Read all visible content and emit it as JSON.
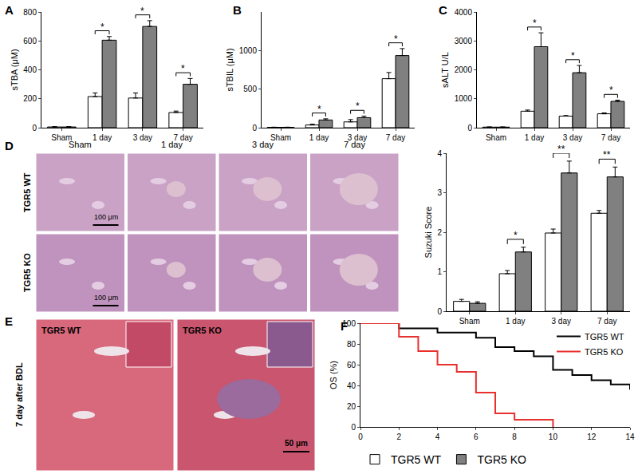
{
  "chart_data": [
    {
      "panel": "A",
      "type": "bar",
      "y_label": "sTBA (μM)",
      "categories": [
        "Sham",
        "1 day",
        "3 day",
        "7 day"
      ],
      "series": [
        {
          "name": "TGR5 WT",
          "color": "#ffffff",
          "values": [
            5,
            215,
            205,
            105
          ],
          "errors": [
            2,
            25,
            35,
            10
          ]
        },
        {
          "name": "TGR5 KO",
          "color": "#808080",
          "values": [
            5,
            605,
            700,
            300
          ],
          "errors": [
            2,
            25,
            40,
            40
          ]
        }
      ],
      "ylim": [
        0,
        800
      ],
      "yticks": [
        0,
        200,
        400,
        600,
        800
      ],
      "significance": [
        null,
        "*",
        "*",
        "*"
      ]
    },
    {
      "panel": "B",
      "type": "bar",
      "y_label": "sTBIL (μM)",
      "categories": [
        "Sham",
        "1 day",
        "3 day",
        "7 day"
      ],
      "series": [
        {
          "name": "TGR5 WT",
          "color": "#ffffff",
          "values": [
            5,
            35,
            75,
            635
          ],
          "errors": [
            2,
            10,
            30,
            80
          ]
        },
        {
          "name": "TGR5 KO",
          "color": "#808080",
          "values": [
            5,
            100,
            130,
            935
          ],
          "errors": [
            2,
            15,
            20,
            90
          ]
        }
      ],
      "ylim": [
        0,
        1500
      ],
      "yticks": [
        0,
        500,
        1000
      ],
      "significance": [
        null,
        "*",
        "*",
        "*"
      ]
    },
    {
      "panel": "C",
      "type": "bar",
      "y_label": "sALT U/L",
      "categories": [
        "Sham",
        "1 day",
        "3 day",
        "7 day"
      ],
      "series": [
        {
          "name": "TGR5 WT",
          "color": "#ffffff",
          "values": [
            20,
            570,
            400,
            480
          ],
          "errors": [
            5,
            40,
            20,
            30
          ]
        },
        {
          "name": "TGR5 KO",
          "color": "#808080",
          "values": [
            20,
            2800,
            1900,
            910
          ],
          "errors": [
            5,
            480,
            250,
            40
          ]
        }
      ],
      "ylim": [
        0,
        4000
      ],
      "yticks": [
        0,
        1000,
        2000,
        3000,
        4000
      ],
      "significance": [
        null,
        "*",
        "*",
        "*"
      ]
    },
    {
      "type": "bar",
      "y_label": "Suzuki Score",
      "categories": [
        "Sham",
        "1 day",
        "3 day",
        "7 day"
      ],
      "series": [
        {
          "name": "TGR5 WT",
          "color": "#ffffff",
          "values": [
            0.25,
            0.95,
            1.98,
            2.48
          ],
          "errors": [
            0.05,
            0.08,
            0.1,
            0.07
          ]
        },
        {
          "name": "TGR5 KO",
          "color": "#808080",
          "values": [
            0.2,
            1.5,
            3.5,
            3.4
          ],
          "errors": [
            0.04,
            0.12,
            0.3,
            0.25
          ]
        }
      ],
      "ylim": [
        0,
        4
      ],
      "yticks": [
        0,
        1,
        2,
        3,
        4
      ],
      "significance": [
        null,
        "*",
        "**",
        "**"
      ]
    },
    {
      "panel": "F",
      "type": "line",
      "line_style": "step",
      "y_label": "OS (%)",
      "xlim": [
        0,
        14
      ],
      "xticks": [
        0,
        2,
        4,
        6,
        8,
        10,
        12,
        14
      ],
      "ylim": [
        0,
        100
      ],
      "yticks": [
        0,
        20,
        40,
        60,
        80,
        100
      ],
      "legend": "upper right",
      "series": [
        {
          "name": "TGR5 WT",
          "color": "#000000",
          "x": [
            0,
            2,
            4,
            6,
            7,
            8,
            9,
            10,
            11,
            12,
            13,
            14
          ],
          "values": [
            100,
            95,
            91,
            86,
            77,
            73,
            68,
            55,
            50,
            45,
            41,
            36
          ]
        },
        {
          "name": "TGR5 KO",
          "color": "#e8312f",
          "x": [
            0,
            2,
            3,
            4,
            5,
            6,
            7,
            8,
            10
          ],
          "values": [
            100,
            87,
            73,
            60,
            53,
            33,
            13,
            7,
            0
          ]
        }
      ]
    }
  ],
  "micrographs": {
    "D": {
      "panel": "D",
      "columns": [
        "Sham",
        "1 day",
        "3 day",
        "7 day"
      ],
      "rows": [
        "TGR5 WT",
        "TGR5 KO"
      ],
      "scale_bar": "100 μm"
    },
    "E": {
      "panel": "E",
      "side_label": "7 day after BDL",
      "images": [
        "TGR5 WT",
        "TGR5 KO"
      ],
      "scale_bar": "50 μm"
    }
  }
}
